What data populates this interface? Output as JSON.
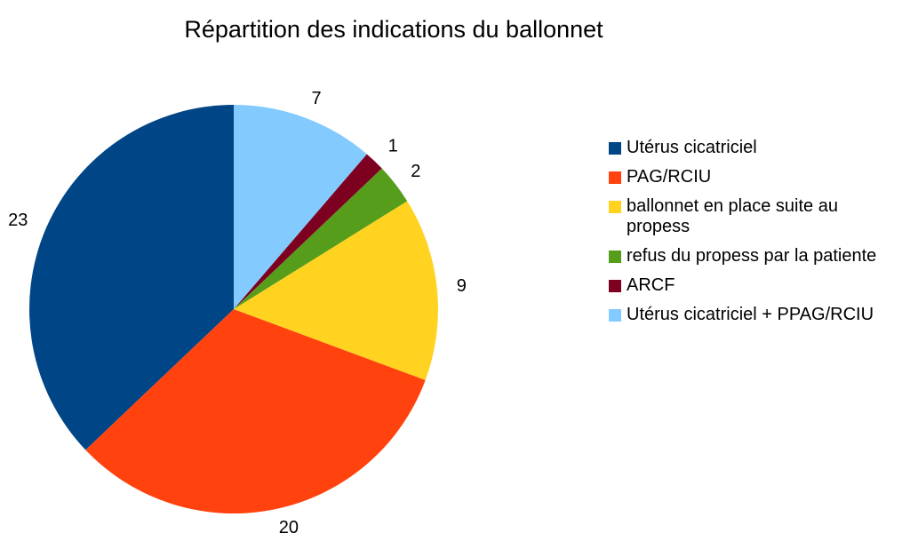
{
  "chart_data": {
    "type": "pie",
    "title": "Répartition des indications du ballonnet",
    "categories": [
      "Utérus cicatriciel",
      "PAG/RCIU",
      "ballonnet en place suite au propess",
      "refus du propess par la patiente",
      "ARCF",
      "Utérus cicatriciel + PPAG/RCIU"
    ],
    "values": [
      23,
      20,
      9,
      2,
      1,
      7
    ],
    "colors": [
      "#004586",
      "#ff420e",
      "#ffd320",
      "#579d1c",
      "#7e0021",
      "#83caff"
    ],
    "legend": "right"
  }
}
